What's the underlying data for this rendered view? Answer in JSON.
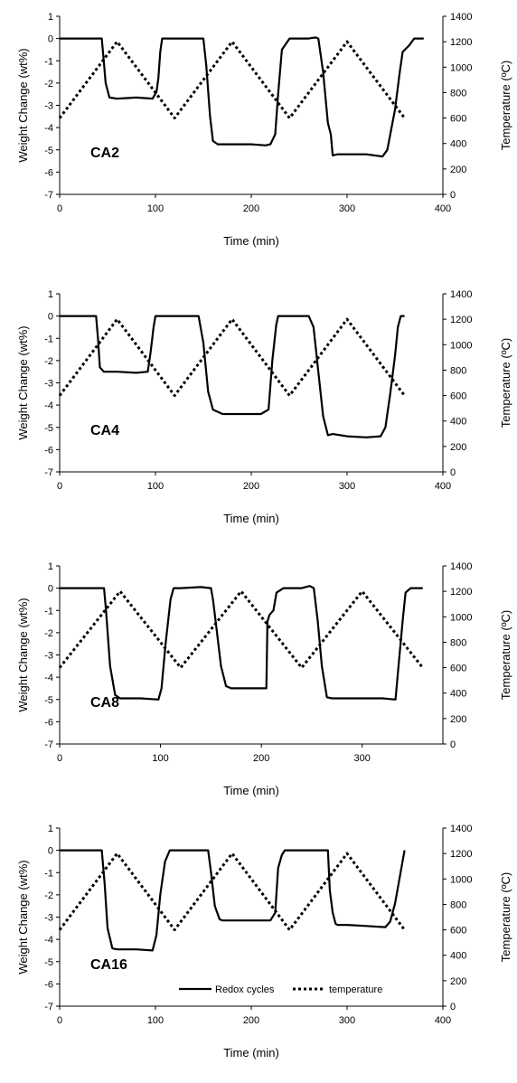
{
  "chart_data": [
    {
      "type": "line",
      "sample_label": "CA2",
      "xlabel": "Time (min)",
      "ylabel": "Weight Change (wt%)",
      "ylabel_right": "Temperature (ºC)",
      "xlim": [
        0,
        400
      ],
      "ylim": [
        -7,
        1
      ],
      "ylim_right": [
        0,
        1400
      ],
      "x_ticks": [
        "0",
        "100",
        "200",
        "300",
        "400"
      ],
      "y_ticks": [
        "1",
        "0",
        "-1",
        "-2",
        "-3",
        "-4",
        "-5",
        "-6",
        "-7"
      ],
      "y_right_ticks": [
        "1400",
        "1200",
        "1000",
        "800",
        "600",
        "400",
        "200",
        "0"
      ],
      "grid": false,
      "series": [
        {
          "axis": "left",
          "style": "solid",
          "x": [
            0,
            44,
            46,
            48,
            52,
            60,
            80,
            97,
            101,
            103,
            105,
            107,
            115,
            140,
            150,
            153,
            157,
            160,
            165,
            180,
            200,
            215,
            220,
            225,
            228,
            232,
            240,
            260,
            267,
            270,
            275,
            280,
            283,
            285,
            290,
            300,
            320,
            337,
            342,
            350,
            355,
            358,
            365,
            370,
            380
          ],
          "y": [
            0,
            0,
            -1,
            -2,
            -2.65,
            -2.7,
            -2.65,
            -2.7,
            -2.4,
            -1.8,
            -0.6,
            0,
            0,
            0,
            0,
            -1.2,
            -3.5,
            -4.6,
            -4.75,
            -4.75,
            -4.75,
            -4.8,
            -4.75,
            -4.3,
            -2.5,
            -0.5,
            0,
            0,
            0.05,
            0,
            -1.5,
            -3.8,
            -4.3,
            -5.25,
            -5.2,
            -5.2,
            -5.2,
            -5.3,
            -5,
            -3.2,
            -1.5,
            -0.6,
            -0.3,
            0,
            0
          ]
        },
        {
          "axis": "right",
          "style": "dotted",
          "x": [
            0,
            60,
            120,
            180,
            240,
            300,
            360
          ],
          "y": [
            600,
            1200,
            600,
            1200,
            600,
            1200,
            600
          ]
        }
      ]
    },
    {
      "type": "line",
      "sample_label": "CA4",
      "xlabel": "Time (min)",
      "ylabel": "Weight Change (wt%)",
      "ylabel_right": "Temperature (ºC)",
      "xlim": [
        0,
        400
      ],
      "ylim": [
        -7,
        1
      ],
      "ylim_right": [
        0,
        1400
      ],
      "x_ticks": [
        "0",
        "100",
        "200",
        "300",
        "400"
      ],
      "y_ticks": [
        "1",
        "0",
        "-1",
        "-2",
        "-3",
        "-4",
        "-5",
        "-6",
        "-7"
      ],
      "y_right_ticks": [
        "1400",
        "1200",
        "1000",
        "800",
        "600",
        "400",
        "200",
        "0"
      ],
      "grid": false,
      "series": [
        {
          "axis": "left",
          "style": "solid",
          "x": [
            0,
            38,
            40,
            42,
            46,
            60,
            80,
            92,
            95,
            98,
            100,
            102,
            110,
            140,
            145,
            150,
            155,
            160,
            170,
            190,
            210,
            218,
            222,
            226,
            228,
            240,
            260,
            265,
            270,
            275,
            280,
            285,
            300,
            320,
            335,
            340,
            345,
            350,
            353,
            356,
            360
          ],
          "y": [
            0,
            0,
            -1,
            -2.3,
            -2.5,
            -2.5,
            -2.55,
            -2.5,
            -1.6,
            -0.5,
            0,
            0,
            0,
            0,
            0,
            -1.2,
            -3.4,
            -4.2,
            -4.4,
            -4.4,
            -4.4,
            -4.2,
            -2,
            -0.4,
            0,
            0,
            0,
            -0.5,
            -2.5,
            -4.5,
            -5.35,
            -5.3,
            -5.4,
            -5.45,
            -5.4,
            -5,
            -3.5,
            -1.8,
            -0.5,
            0,
            0
          ]
        },
        {
          "axis": "right",
          "style": "dotted",
          "x": [
            0,
            60,
            120,
            180,
            240,
            300,
            360
          ],
          "y": [
            600,
            1200,
            600,
            1200,
            600,
            1200,
            600
          ]
        }
      ]
    },
    {
      "type": "line",
      "sample_label": "CA8",
      "xlabel": "Time (min)",
      "ylabel": "Weight Change (wt%)",
      "ylabel_right": "Temperature (ºC)",
      "xlim": [
        0,
        380
      ],
      "ylim": [
        -7,
        1
      ],
      "ylim_right": [
        0,
        1400
      ],
      "x_ticks": [
        "0",
        "100",
        "200",
        "300"
      ],
      "y_ticks": [
        "1",
        "0",
        "-1",
        "-2",
        "-3",
        "-4",
        "-5",
        "-6",
        "-7"
      ],
      "y_right_ticks": [
        "1400",
        "1200",
        "1000",
        "800",
        "600",
        "400",
        "200",
        "0"
      ],
      "grid": false,
      "series": [
        {
          "axis": "left",
          "style": "solid",
          "x": [
            0,
            44,
            46,
            50,
            55,
            60,
            80,
            98,
            101,
            105,
            110,
            113,
            120,
            140,
            150,
            152,
            156,
            160,
            165,
            170,
            180,
            195,
            205,
            206,
            208,
            212,
            215,
            222,
            240,
            248,
            252,
            256,
            260,
            265,
            270,
            280,
            300,
            320,
            333,
            336,
            340,
            343,
            348,
            360
          ],
          "y": [
            0,
            0,
            -1,
            -3.5,
            -4.8,
            -4.95,
            -4.95,
            -5,
            -4.5,
            -2.5,
            -0.5,
            0,
            0,
            0.05,
            0,
            -0.5,
            -2,
            -3.5,
            -4.4,
            -4.5,
            -4.5,
            -4.5,
            -4.5,
            -1.5,
            -1.2,
            -1.0,
            -0.2,
            0,
            0,
            0.1,
            0,
            -1.5,
            -3.5,
            -4.9,
            -4.95,
            -4.95,
            -4.95,
            -4.95,
            -5,
            -3.5,
            -1.5,
            -0.2,
            0,
            0
          ]
        },
        {
          "axis": "right",
          "style": "dotted",
          "x": [
            0,
            60,
            120,
            180,
            240,
            300,
            360
          ],
          "y": [
            600,
            1200,
            600,
            1200,
            600,
            1200,
            600
          ]
        }
      ]
    },
    {
      "type": "line",
      "sample_label": "CA16",
      "xlabel": "Time (min)",
      "ylabel": "Weight Change (wt%)",
      "ylabel_right": "Temperature (ºC)",
      "xlim": [
        0,
        400
      ],
      "ylim": [
        -7,
        1
      ],
      "ylim_right": [
        0,
        1400
      ],
      "x_ticks": [
        "0",
        "100",
        "200",
        "300",
        "400"
      ],
      "y_ticks": [
        "1",
        "0",
        "-1",
        "-2",
        "-3",
        "-4",
        "-5",
        "-6",
        "-7"
      ],
      "y_right_ticks": [
        "1400",
        "1200",
        "1000",
        "800",
        "600",
        "400",
        "200",
        "0"
      ],
      "grid": false,
      "legend_position": "bottom-right",
      "series": [
        {
          "name": "Redox cycles",
          "axis": "left",
          "style": "solid",
          "x": [
            0,
            44,
            47,
            50,
            55,
            60,
            80,
            97,
            101,
            105,
            110,
            115,
            120,
            145,
            155,
            158,
            162,
            167,
            170,
            180,
            200,
            220,
            225,
            228,
            232,
            235,
            240,
            260,
            280,
            282,
            285,
            288,
            290,
            300,
            320,
            340,
            345,
            350,
            355,
            360
          ],
          "y": [
            0,
            0,
            -1.5,
            -3.5,
            -4.4,
            -4.45,
            -4.45,
            -4.5,
            -3.8,
            -2,
            -0.5,
            0,
            0,
            0,
            0,
            -1,
            -2.5,
            -3.1,
            -3.15,
            -3.15,
            -3.15,
            -3.15,
            -2.8,
            -0.8,
            -0.2,
            0,
            0,
            0,
            0,
            -1.8,
            -2.8,
            -3.3,
            -3.35,
            -3.35,
            -3.4,
            -3.45,
            -3.2,
            -2.4,
            -1.2,
            0
          ]
        },
        {
          "name": "temperature",
          "axis": "right",
          "style": "dotted",
          "x": [
            0,
            60,
            120,
            180,
            240,
            300,
            360
          ],
          "y": [
            600,
            1200,
            600,
            1200,
            600,
            1200,
            600
          ]
        }
      ]
    }
  ]
}
